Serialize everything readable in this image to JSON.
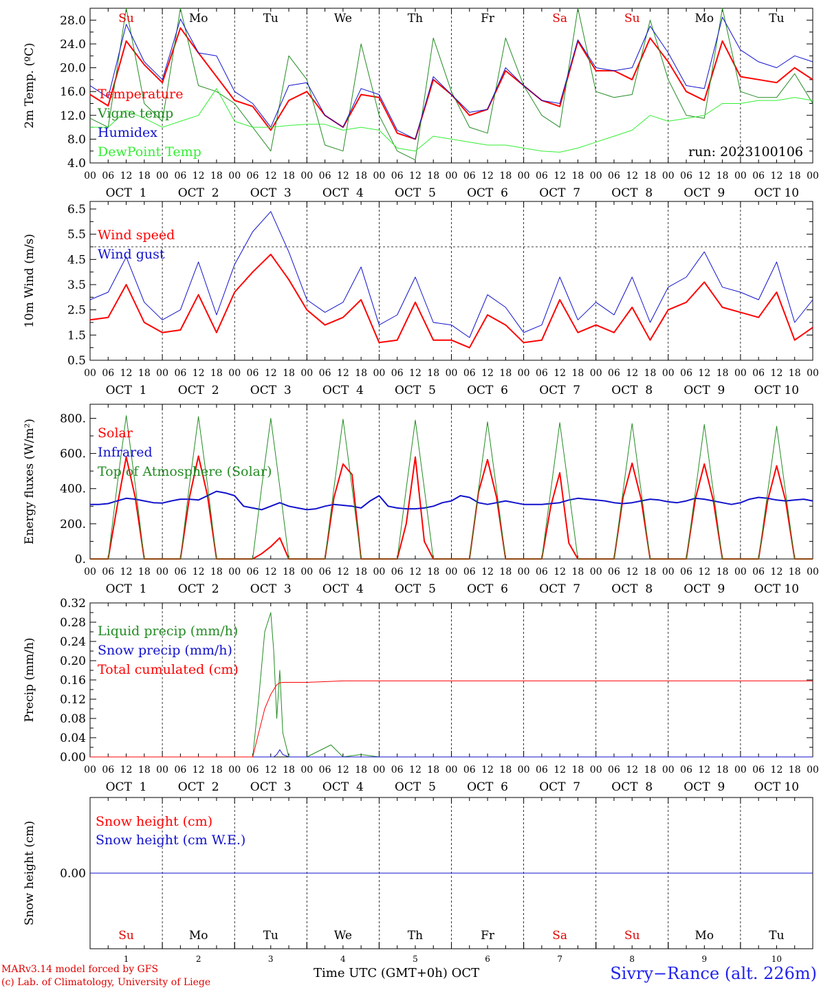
{
  "footer": {
    "model": "MARv3.14 model forced by GFS",
    "credit": "(c) Lab. of Climatology, University of Liege",
    "station": "Sivry−Rance (alt. 226m)",
    "xaxis_title": "Time UTC (GMT+0h) OCT"
  },
  "hour_labels": [
    "00",
    "06",
    "12",
    "18"
  ],
  "day_labels": [
    "OCT  1",
    "OCT  2",
    "OCT  3",
    "OCT  4",
    "OCT  5",
    "OCT  6",
    "OCT  7",
    "OCT  8",
    "OCT  9",
    "OCT 10"
  ],
  "day_numbers": [
    "1",
    "2",
    "3",
    "4",
    "5",
    "6",
    "7",
    "8",
    "9",
    "10"
  ],
  "weekdays": [
    {
      "label": "Su",
      "color": "#e00000"
    },
    {
      "label": "Mo",
      "color": "#000000"
    },
    {
      "label": "Tu",
      "color": "#000000"
    },
    {
      "label": "We",
      "color": "#000000"
    },
    {
      "label": "Th",
      "color": "#000000"
    },
    {
      "label": "Fr",
      "color": "#000000"
    },
    {
      "label": "Sa",
      "color": "#e00000"
    },
    {
      "label": "Su",
      "color": "#e00000"
    },
    {
      "label": "Mo",
      "color": "#000000"
    },
    {
      "label": "Tu",
      "color": "#000000"
    }
  ],
  "chart_data": [
    {
      "type": "line",
      "ylabel": "2m Temp. (ºC)",
      "ylim": [
        4,
        30
      ],
      "yticks": [
        "4.0",
        "8.0",
        "12.0",
        "16.0",
        "20.0",
        "24.0",
        "28.0"
      ],
      "annotation": "run: 2023100106",
      "x": [
        0,
        6,
        12,
        18,
        24,
        30,
        36,
        42,
        48,
        54,
        60,
        66,
        72,
        78,
        84,
        90,
        96,
        102,
        108,
        114,
        120,
        126,
        132,
        138,
        144,
        150,
        156,
        162,
        168,
        174,
        180,
        186,
        192,
        198,
        204,
        210,
        216,
        222,
        228,
        234,
        240
      ],
      "series": [
        {
          "name": "Temperature",
          "color": "#ff0000",
          "width": 2,
          "values": [
            15.5,
            13.6,
            24.5,
            20.5,
            17.5,
            26.7,
            22.5,
            18.5,
            14.5,
            13.5,
            9.5,
            14.5,
            16,
            12,
            10,
            15.5,
            15,
            9,
            8,
            18,
            15.5,
            12,
            13,
            19.5,
            17,
            14.5,
            13.5,
            24.5,
            19.5,
            19.5,
            18,
            25,
            21,
            16,
            14.5,
            24.5,
            18.5,
            18,
            17.5,
            20,
            18
          ]
        },
        {
          "name": "Vigne temp",
          "color": "#228b22",
          "width": 1,
          "values": [
            11.5,
            10,
            30,
            14,
            11,
            30,
            17,
            16,
            14,
            10,
            6,
            22,
            18,
            7,
            6,
            24,
            12,
            6,
            4.5,
            25,
            16,
            10,
            9,
            25,
            17,
            12,
            10,
            30,
            16,
            15,
            15.5,
            28,
            18,
            12,
            11.5,
            30,
            16,
            15,
            15,
            19,
            14
          ]
        },
        {
          "name": "Humidex",
          "color": "#1111cc",
          "width": 1,
          "values": [
            17,
            15,
            27.3,
            21,
            18,
            28.2,
            22.5,
            22,
            16,
            14,
            10,
            17,
            17.5,
            12,
            10,
            16.5,
            15.5,
            9.5,
            8,
            18.5,
            15.5,
            12.5,
            13,
            20,
            17,
            14.5,
            14,
            24.7,
            20,
            19.5,
            20,
            27,
            22.5,
            17,
            16.5,
            28.5,
            23,
            21,
            20,
            22,
            21
          ]
        },
        {
          "name": "DewPoint Temp",
          "color": "#33ee33",
          "width": 1,
          "values": [
            10,
            10,
            12.8,
            11.5,
            10,
            11,
            12,
            16.5,
            11,
            10,
            10,
            10.3,
            10.5,
            10.5,
            9.5,
            10,
            9.5,
            6.5,
            6,
            8.5,
            8,
            7.5,
            7,
            7,
            6.5,
            6,
            5.8,
            6.5,
            7.5,
            8.5,
            9.5,
            12,
            11,
            11.5,
            12,
            14,
            14,
            14.5,
            14.5,
            15,
            14.5
          ]
        }
      ]
    },
    {
      "type": "line",
      "ylabel": "10m Wind (m/s)",
      "ylim": [
        0.5,
        6.8
      ],
      "yticks": [
        "0.5",
        "1.5",
        "2.5",
        "3.5",
        "4.5",
        "5.5",
        "6.5"
      ],
      "reference_line": 5.0,
      "x": [
        0,
        6,
        12,
        18,
        24,
        30,
        36,
        42,
        48,
        54,
        60,
        66,
        72,
        78,
        84,
        90,
        96,
        102,
        108,
        114,
        120,
        126,
        132,
        138,
        144,
        150,
        156,
        162,
        168,
        174,
        180,
        186,
        192,
        198,
        204,
        210,
        216,
        222,
        228,
        234,
        240
      ],
      "series": [
        {
          "name": "Wind speed",
          "color": "#ff0000",
          "width": 2,
          "values": [
            2.1,
            2.2,
            3.5,
            2.0,
            1.6,
            1.7,
            3.1,
            1.6,
            3.2,
            4.0,
            4.7,
            3.7,
            2.5,
            1.9,
            2.2,
            2.9,
            1.2,
            1.3,
            2.8,
            1.3,
            1.3,
            1.0,
            2.3,
            1.9,
            1.2,
            1.3,
            2.9,
            1.6,
            1.9,
            1.6,
            2.6,
            1.3,
            2.5,
            2.8,
            3.6,
            2.6,
            2.4,
            2.2,
            3.2,
            1.3,
            1.8
          ]
        },
        {
          "name": "Wind gust",
          "color": "#1111cc",
          "width": 1,
          "values": [
            2.9,
            3.2,
            4.6,
            2.8,
            2.1,
            2.5,
            4.4,
            2.3,
            4.3,
            5.6,
            6.4,
            4.8,
            2.9,
            2.4,
            2.8,
            4.2,
            1.9,
            2.3,
            3.8,
            2.0,
            1.9,
            1.4,
            3.1,
            2.6,
            1.6,
            1.9,
            3.8,
            2.1,
            2.8,
            2.3,
            3.8,
            2.0,
            3.4,
            3.8,
            4.8,
            3.4,
            3.2,
            2.9,
            4.4,
            2.0,
            2.9
          ]
        }
      ]
    },
    {
      "type": "line",
      "ylabel": "Energy fluxes (W/m²)",
      "ylim": [
        0,
        880
      ],
      "yticks": [
        "0.",
        "200.",
        "400.",
        "600.",
        "800."
      ],
      "x": [
        0,
        3,
        6,
        9,
        12,
        15,
        18,
        21,
        24,
        27,
        30,
        33,
        36,
        39,
        42,
        45,
        48,
        51,
        54,
        57,
        60,
        63,
        66,
        69,
        72,
        75,
        78,
        81,
        84,
        87,
        90,
        93,
        96,
        99,
        102,
        105,
        108,
        111,
        114,
        117,
        120,
        123,
        126,
        129,
        132,
        135,
        138,
        141,
        144,
        147,
        150,
        153,
        156,
        159,
        162,
        165,
        168,
        171,
        174,
        177,
        180,
        183,
        186,
        189,
        192,
        195,
        198,
        201,
        204,
        207,
        210,
        213,
        216,
        219,
        222,
        225,
        228,
        231,
        234,
        237,
        240
      ],
      "series": [
        {
          "name": "Solar",
          "color": "#ff0000",
          "width": 2,
          "values": [
            0,
            0,
            0,
            300,
            580,
            350,
            0,
            0,
            0,
            0,
            0,
            350,
            585,
            360,
            0,
            0,
            0,
            0,
            0,
            30,
            70,
            120,
            0,
            0,
            0,
            0,
            0,
            350,
            540,
            480,
            0,
            0,
            0,
            0,
            0,
            200,
            580,
            100,
            0,
            0,
            0,
            0,
            0,
            380,
            565,
            350,
            0,
            0,
            0,
            0,
            0,
            300,
            490,
            90,
            0,
            0,
            0,
            0,
            0,
            350,
            545,
            340,
            0,
            0,
            0,
            0,
            0,
            340,
            540,
            330,
            0,
            0,
            0,
            0,
            0,
            330,
            530,
            330,
            0,
            0,
            0
          ]
        },
        {
          "name": "Infrared",
          "color": "#1111cc",
          "width": 2,
          "values": [
            310,
            310,
            315,
            330,
            345,
            340,
            330,
            320,
            318,
            330,
            340,
            340,
            335,
            360,
            385,
            375,
            360,
            300,
            290,
            280,
            300,
            320,
            300,
            290,
            280,
            285,
            300,
            310,
            305,
            300,
            290,
            330,
            360,
            300,
            290,
            285,
            285,
            290,
            300,
            320,
            330,
            360,
            350,
            320,
            310,
            320,
            330,
            320,
            310,
            310,
            310,
            315,
            320,
            335,
            345,
            340,
            335,
            330,
            320,
            315,
            320,
            330,
            340,
            335,
            325,
            320,
            330,
            345,
            340,
            330,
            320,
            310,
            320,
            340,
            350,
            345,
            335,
            330,
            335,
            340,
            330
          ]
        },
        {
          "name": "Top of Atmosphere (Solar)",
          "color": "#228b22",
          "width": 1,
          "values": [
            0,
            0,
            0,
            420,
            815,
            420,
            0,
            0,
            0,
            0,
            0,
            420,
            810,
            420,
            0,
            0,
            0,
            0,
            0,
            410,
            800,
            410,
            0,
            0,
            0,
            0,
            0,
            405,
            795,
            405,
            0,
            0,
            0,
            0,
            0,
            400,
            790,
            400,
            0,
            0,
            0,
            0,
            0,
            395,
            780,
            395,
            0,
            0,
            0,
            0,
            0,
            390,
            775,
            390,
            0,
            0,
            0,
            0,
            0,
            385,
            770,
            385,
            0,
            0,
            0,
            0,
            0,
            380,
            765,
            380,
            0,
            0,
            0,
            0,
            0,
            375,
            755,
            375,
            0,
            0,
            0
          ]
        }
      ]
    },
    {
      "type": "line",
      "ylabel": "Precip (mm/h)",
      "ylim": [
        0,
        0.32
      ],
      "yticks": [
        "0.00",
        "0.04",
        "0.08",
        "0.12",
        "0.16",
        "0.20",
        "0.24",
        "0.28",
        "0.32"
      ],
      "x": [
        0,
        48,
        54,
        56,
        58,
        60,
        61,
        62,
        63,
        64,
        66,
        68,
        72,
        80,
        84,
        90,
        96,
        120,
        240
      ],
      "series": [
        {
          "name": "Liquid precip (mm/h)",
          "color": "#228b22",
          "width": 1,
          "values": [
            0,
            0,
            0,
            0.12,
            0.26,
            0.3,
            0.22,
            0.08,
            0.18,
            0.05,
            0,
            0,
            0,
            0.025,
            0,
            0.005,
            0,
            0,
            0
          ]
        },
        {
          "name": "Snow precip (mm/h)",
          "color": "#1111cc",
          "width": 1,
          "values": [
            0,
            0,
            0,
            0,
            0,
            0,
            0,
            0.005,
            0.015,
            0.005,
            0,
            0,
            0,
            0,
            0,
            0,
            0,
            0,
            0
          ]
        },
        {
          "name": "Total cumulated (cm)",
          "color": "#ff0000",
          "width": 1,
          "values": [
            0,
            0,
            0,
            0.05,
            0.1,
            0.13,
            0.14,
            0.15,
            0.154,
            0.155,
            0.155,
            0.155,
            0.155,
            0.157,
            0.158,
            0.158,
            0.158,
            0.158,
            0.158
          ]
        }
      ]
    },
    {
      "type": "line",
      "ylabel": "Snow height (cm)",
      "yticks": [
        "0.00"
      ],
      "x": [
        0,
        240
      ],
      "series": [
        {
          "name": "Snow height (cm)",
          "color": "#ff0000",
          "width": 1,
          "values": [
            0,
            0
          ]
        },
        {
          "name": "Snow height (cm W.E.)",
          "color": "#1111cc",
          "width": 1,
          "values": [
            0,
            0
          ]
        }
      ]
    }
  ]
}
